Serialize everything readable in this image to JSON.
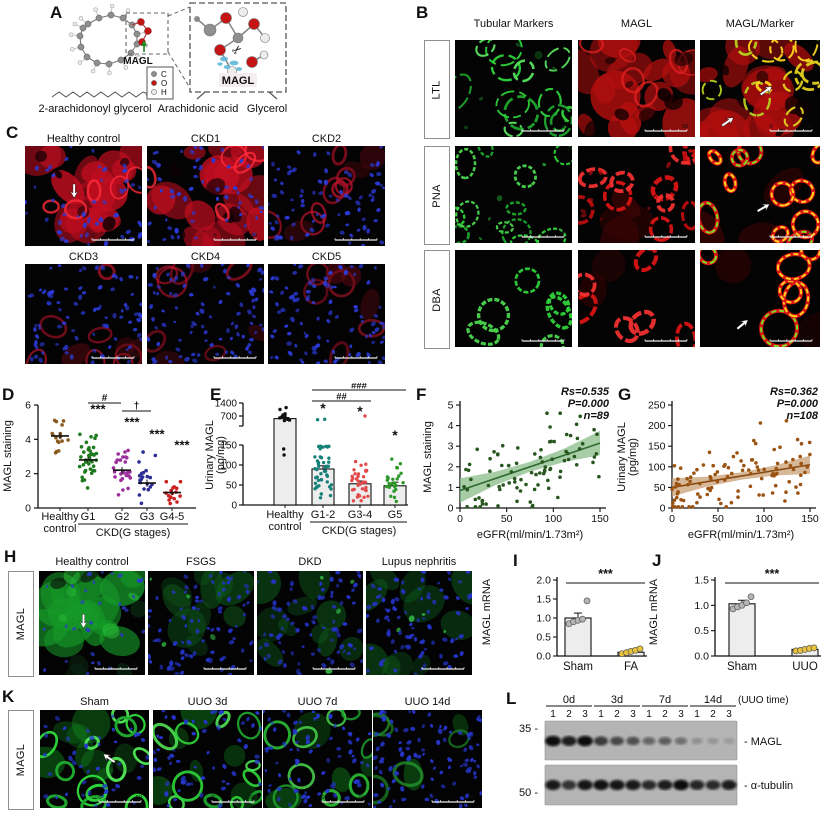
{
  "panels": {
    "A": {
      "letter": "A",
      "magl": "MAGL",
      "legend": [
        {
          "label": "C",
          "color": "#8f8f8f"
        },
        {
          "label": "O",
          "color": "#c41414"
        },
        {
          "label": "H",
          "color": "#ececec"
        }
      ],
      "labels": [
        "2-arachidonoyl glycerol",
        "Arachidonic acid",
        "Glycerol"
      ]
    },
    "B": {
      "letter": "B",
      "col_headers": [
        "Tubular Markers",
        "MAGL",
        "MAGL/Marker"
      ],
      "row_labels": [
        "LTL",
        "PNA",
        "DBA"
      ]
    },
    "C": {
      "letter": "C",
      "titles": [
        "Healthy control",
        "CKD1",
        "CKD2",
        "CKD3",
        "CKD4",
        "CKD5"
      ]
    },
    "D": {
      "letter": "D"
    },
    "E": {
      "letter": "E"
    },
    "F": {
      "letter": "F"
    },
    "G": {
      "letter": "G"
    },
    "H": {
      "letter": "H",
      "row_label": "MAGL",
      "titles": [
        "Healthy control",
        "FSGS",
        "DKD",
        "Lupus nephritis"
      ]
    },
    "I": {
      "letter": "I"
    },
    "J": {
      "letter": "J"
    },
    "K": {
      "letter": "K",
      "row_label": "MAGL",
      "titles": [
        "Sham",
        "UUO 3d",
        "UUO 7d",
        "UUO 14d"
      ]
    },
    "L": {
      "letter": "L"
    }
  },
  "scalebar": {
    "start": "0",
    "end": "50"
  },
  "chart_data": {
    "D": {
      "type": "dot-strip",
      "ylabel": "MAGL staining",
      "ylim": [
        0,
        6
      ],
      "yticks": [
        0,
        2,
        4,
        6
      ],
      "group_axis_label": "CKD(G stages)",
      "groups": [
        {
          "label": "Healthy control",
          "label_lines": [
            "Healthy",
            "control"
          ],
          "color": "#8a5a1e",
          "n": 16,
          "mean": 4.2,
          "sd": 0.75,
          "min": 2.2,
          "max": 5.2
        },
        {
          "label": "G1",
          "color": "#1e7a1e",
          "n": 38,
          "mean": 2.8,
          "sd": 0.95,
          "min": 0.6,
          "max": 4.4,
          "sig": "***",
          "sig_y": 5.5
        },
        {
          "label": "G2",
          "color": "#9b2f9b",
          "n": 26,
          "mean": 2.2,
          "sd": 1.0,
          "min": 0.3,
          "max": 4.2,
          "sig": "***",
          "sig_y": 4.75
        },
        {
          "label": "G3",
          "color": "#2c2c96",
          "n": 20,
          "mean": 1.45,
          "sd": 0.95,
          "min": 0.25,
          "max": 3.7,
          "sig": "***",
          "sig_y": 4.05
        },
        {
          "label": "G4-5",
          "color": "#cc2020",
          "n": 16,
          "mean": 0.9,
          "sd": 0.6,
          "min": 0.15,
          "max": 2.5,
          "sig": "***",
          "sig_y": 3.4
        }
      ],
      "comparisons": [
        {
          "label": "#",
          "g1": 1,
          "g2": 2
        },
        {
          "label": "†",
          "g1": 2,
          "g2": 3
        }
      ]
    },
    "E": {
      "type": "broken-bar",
      "ylabel_lines": [
        "Urinary MAGL",
        "(pg/mg)"
      ],
      "upper_ticks": [
        1400,
        700
      ],
      "main_ticks": [
        150,
        100,
        50,
        0
      ],
      "group_axis_label": "CKD(G stages)",
      "groups": [
        {
          "label": "Healthy control",
          "label_lines": [
            "Healthy",
            "control"
          ],
          "bar": 560,
          "upper": true,
          "err": 60,
          "dot_color": "#111111",
          "dots_upper": [
            450,
            480,
            520,
            560,
            600,
            650,
            700,
            760,
            820,
            1050,
            1150
          ],
          "dots_main": [
            125,
            140
          ]
        },
        {
          "label": "G1-2",
          "bar": 90,
          "err": 8,
          "dot_color": "#15807a",
          "n": 44,
          "mean": 85,
          "sd": 45,
          "min": 8,
          "max": 150,
          "dots_upper": [
            500,
            520
          ],
          "sig": "*"
        },
        {
          "label": "G3-4",
          "bar": 53,
          "err": 7,
          "dot_color": "#e24b4b",
          "n": 34,
          "mean": 52,
          "sd": 30,
          "min": 4,
          "max": 132,
          "dots_upper": [
            700
          ],
          "sig": "*"
        },
        {
          "label": "G5",
          "bar": 48,
          "err": 9,
          "dot_color": "#2e9929",
          "n": 25,
          "mean": 50,
          "sd": 35,
          "min": 6,
          "max": 145,
          "sig": "*"
        }
      ],
      "comparisons": [
        {
          "label": "###",
          "g1": 1,
          "g2": 3
        },
        {
          "label": "##",
          "g1": 1,
          "g2": 2
        }
      ]
    },
    "F": {
      "type": "scatter",
      "stats": [
        "Rs=0.535",
        "P=0.000",
        "n=89"
      ],
      "n": 89,
      "xlim": [
        0,
        150
      ],
      "ylim": [
        0,
        5
      ],
      "xticks": [
        0,
        50,
        100,
        150
      ],
      "yticks": [
        0,
        1,
        2,
        3,
        4,
        5
      ],
      "xlabel": "eGFR(ml/min/1.73m²)",
      "ylabel_lines": [
        "MAGL staining"
      ],
      "dot_color": "#27571f",
      "line_color": "#2f6b2f",
      "band_color": "#8abc8a",
      "trend": {
        "y0": 0.85,
        "y1": 3.15
      },
      "noise": 0.95,
      "band_hw": 0.32
    },
    "G": {
      "type": "scatter",
      "stats": [
        "Rs=0.362",
        "P=0.000",
        "n=108"
      ],
      "n": 108,
      "xlim": [
        0,
        150
      ],
      "ylim": [
        0,
        250
      ],
      "xticks": [
        0,
        50,
        100,
        150
      ],
      "yticks": [
        0,
        50,
        100,
        150,
        200,
        250
      ],
      "xlabel": "eGFR(ml/min/1.73m²)",
      "ylabel_lines": [
        "Urinary MAGL",
        "(pg/mg)"
      ],
      "dot_color": "#9b5312",
      "line_color": "#8a4a10",
      "band_color": "#c8a077",
      "trend": {
        "y0": 50,
        "y1": 105
      },
      "noise": 43,
      "band_hw": 12,
      "x_bias": 1.5
    },
    "I": {
      "type": "bar2",
      "ylabel": "MAGL mRNA",
      "ylim": [
        0,
        2
      ],
      "yticks": [
        0,
        0.5,
        1,
        1.5,
        2
      ],
      "sig": "***",
      "groups": [
        {
          "label": "Sham",
          "bar": 1.0,
          "err": 0.13,
          "dots": [
            0.85,
            0.9,
            0.94,
            0.97,
            1.45
          ],
          "dot_color": "#b5b5b5"
        },
        {
          "label": "FA",
          "bar": 0.1,
          "err": 0.03,
          "dots": [
            0.06,
            0.09,
            0.12,
            0.15,
            0.19
          ],
          "dot_color": "#e9c23b"
        }
      ]
    },
    "J": {
      "type": "bar2",
      "ylabel": "MAGL mRNA",
      "ylim": [
        0,
        1.5
      ],
      "yticks": [
        0,
        0.5,
        1,
        1.5
      ],
      "sig": "***",
      "groups": [
        {
          "label": "Sham",
          "bar": 1.03,
          "err": 0.07,
          "dots": [
            0.93,
            0.97,
            1.0,
            1.05,
            1.17
          ],
          "dot_color": "#b5b5b5"
        },
        {
          "label": "UUO",
          "bar": 0.13,
          "err": 0.02,
          "dots": [
            0.1,
            0.11,
            0.13,
            0.15,
            0.16
          ],
          "dot_color": "#e9c23b"
        }
      ]
    },
    "L": {
      "type": "western-blot",
      "time_groups": [
        "0d",
        "3d",
        "7d",
        "14d"
      ],
      "lanes": [
        "1",
        "2",
        "3"
      ],
      "time_axis_label": "(UUO time)",
      "rows": [
        {
          "band_label": "MAGL",
          "mw": "35",
          "intensities": [
            0.95,
            0.85,
            0.97,
            0.68,
            0.6,
            0.55,
            0.42,
            0.47,
            0.36,
            0.16,
            0.13,
            0.1
          ]
        },
        {
          "band_label": "α-tubulin",
          "mw": "50",
          "intensities": [
            0.88,
            0.72,
            0.9,
            0.92,
            0.9,
            0.88,
            0.78,
            0.86,
            0.95,
            0.8,
            0.78,
            0.85
          ]
        }
      ]
    }
  },
  "micrographs": {
    "B": [
      [
        {
          "scheme": "green-waves",
          "seed": 11
        },
        {
          "scheme": "red-tissue",
          "seed": 12
        },
        {
          "scheme": "merge-waves",
          "seed": 13,
          "arrows": [
            [
              60,
              48,
              -35
            ],
            [
              28,
              80,
              -35
            ]
          ]
        }
      ],
      [
        {
          "scheme": "green-rings",
          "seed": 21
        },
        {
          "scheme": "red-rings",
          "seed": 22
        },
        {
          "scheme": "merge-rings",
          "seed": 23,
          "arrows": [
            [
              58,
              60,
              -30
            ]
          ]
        }
      ],
      [
        {
          "scheme": "green-rings-sparse",
          "seed": 31
        },
        {
          "scheme": "red-rings-sparse",
          "seed": 32
        },
        {
          "scheme": "merge-rings-sparse",
          "seed": 33,
          "arrows": [
            [
              40,
              72,
              -40
            ]
          ]
        }
      ]
    ],
    "C": [
      {
        "scheme": "red-blue",
        "density": 1,
        "seed": 41,
        "arrows": [
          [
            42,
            52,
            90
          ]
        ]
      },
      {
        "scheme": "red-blue",
        "density": 0.85,
        "seed": 42
      },
      {
        "scheme": "red-blue",
        "density": 0.5,
        "seed": 43
      },
      {
        "scheme": "red-blue",
        "density": 0.36,
        "seed": 44
      },
      {
        "scheme": "red-blue",
        "density": 0.22,
        "seed": 45
      },
      {
        "scheme": "red-blue",
        "density": 0.15,
        "seed": 46
      }
    ],
    "H": [
      {
        "scheme": "green-tissue",
        "density": 1,
        "seed": 51,
        "arrows": [
          [
            42,
            55,
            90
          ]
        ]
      },
      {
        "scheme": "green-blue-dim",
        "density": 0.4,
        "seed": 52
      },
      {
        "scheme": "green-blue-dim",
        "density": 0.3,
        "seed": 53
      },
      {
        "scheme": "green-blue-dim",
        "density": 0.28,
        "seed": 54
      }
    ],
    "K": [
      {
        "scheme": "green-rings-blue",
        "density": 1,
        "seed": 61,
        "arrows": [
          [
            58,
            45,
            215
          ]
        ]
      },
      {
        "scheme": "green-rings-blue",
        "density": 0.8,
        "seed": 62
      },
      {
        "scheme": "green-rings-blue",
        "density": 0.55,
        "seed": 63
      },
      {
        "scheme": "green-rings-blue",
        "density": 0.22,
        "seed": 64
      }
    ]
  }
}
